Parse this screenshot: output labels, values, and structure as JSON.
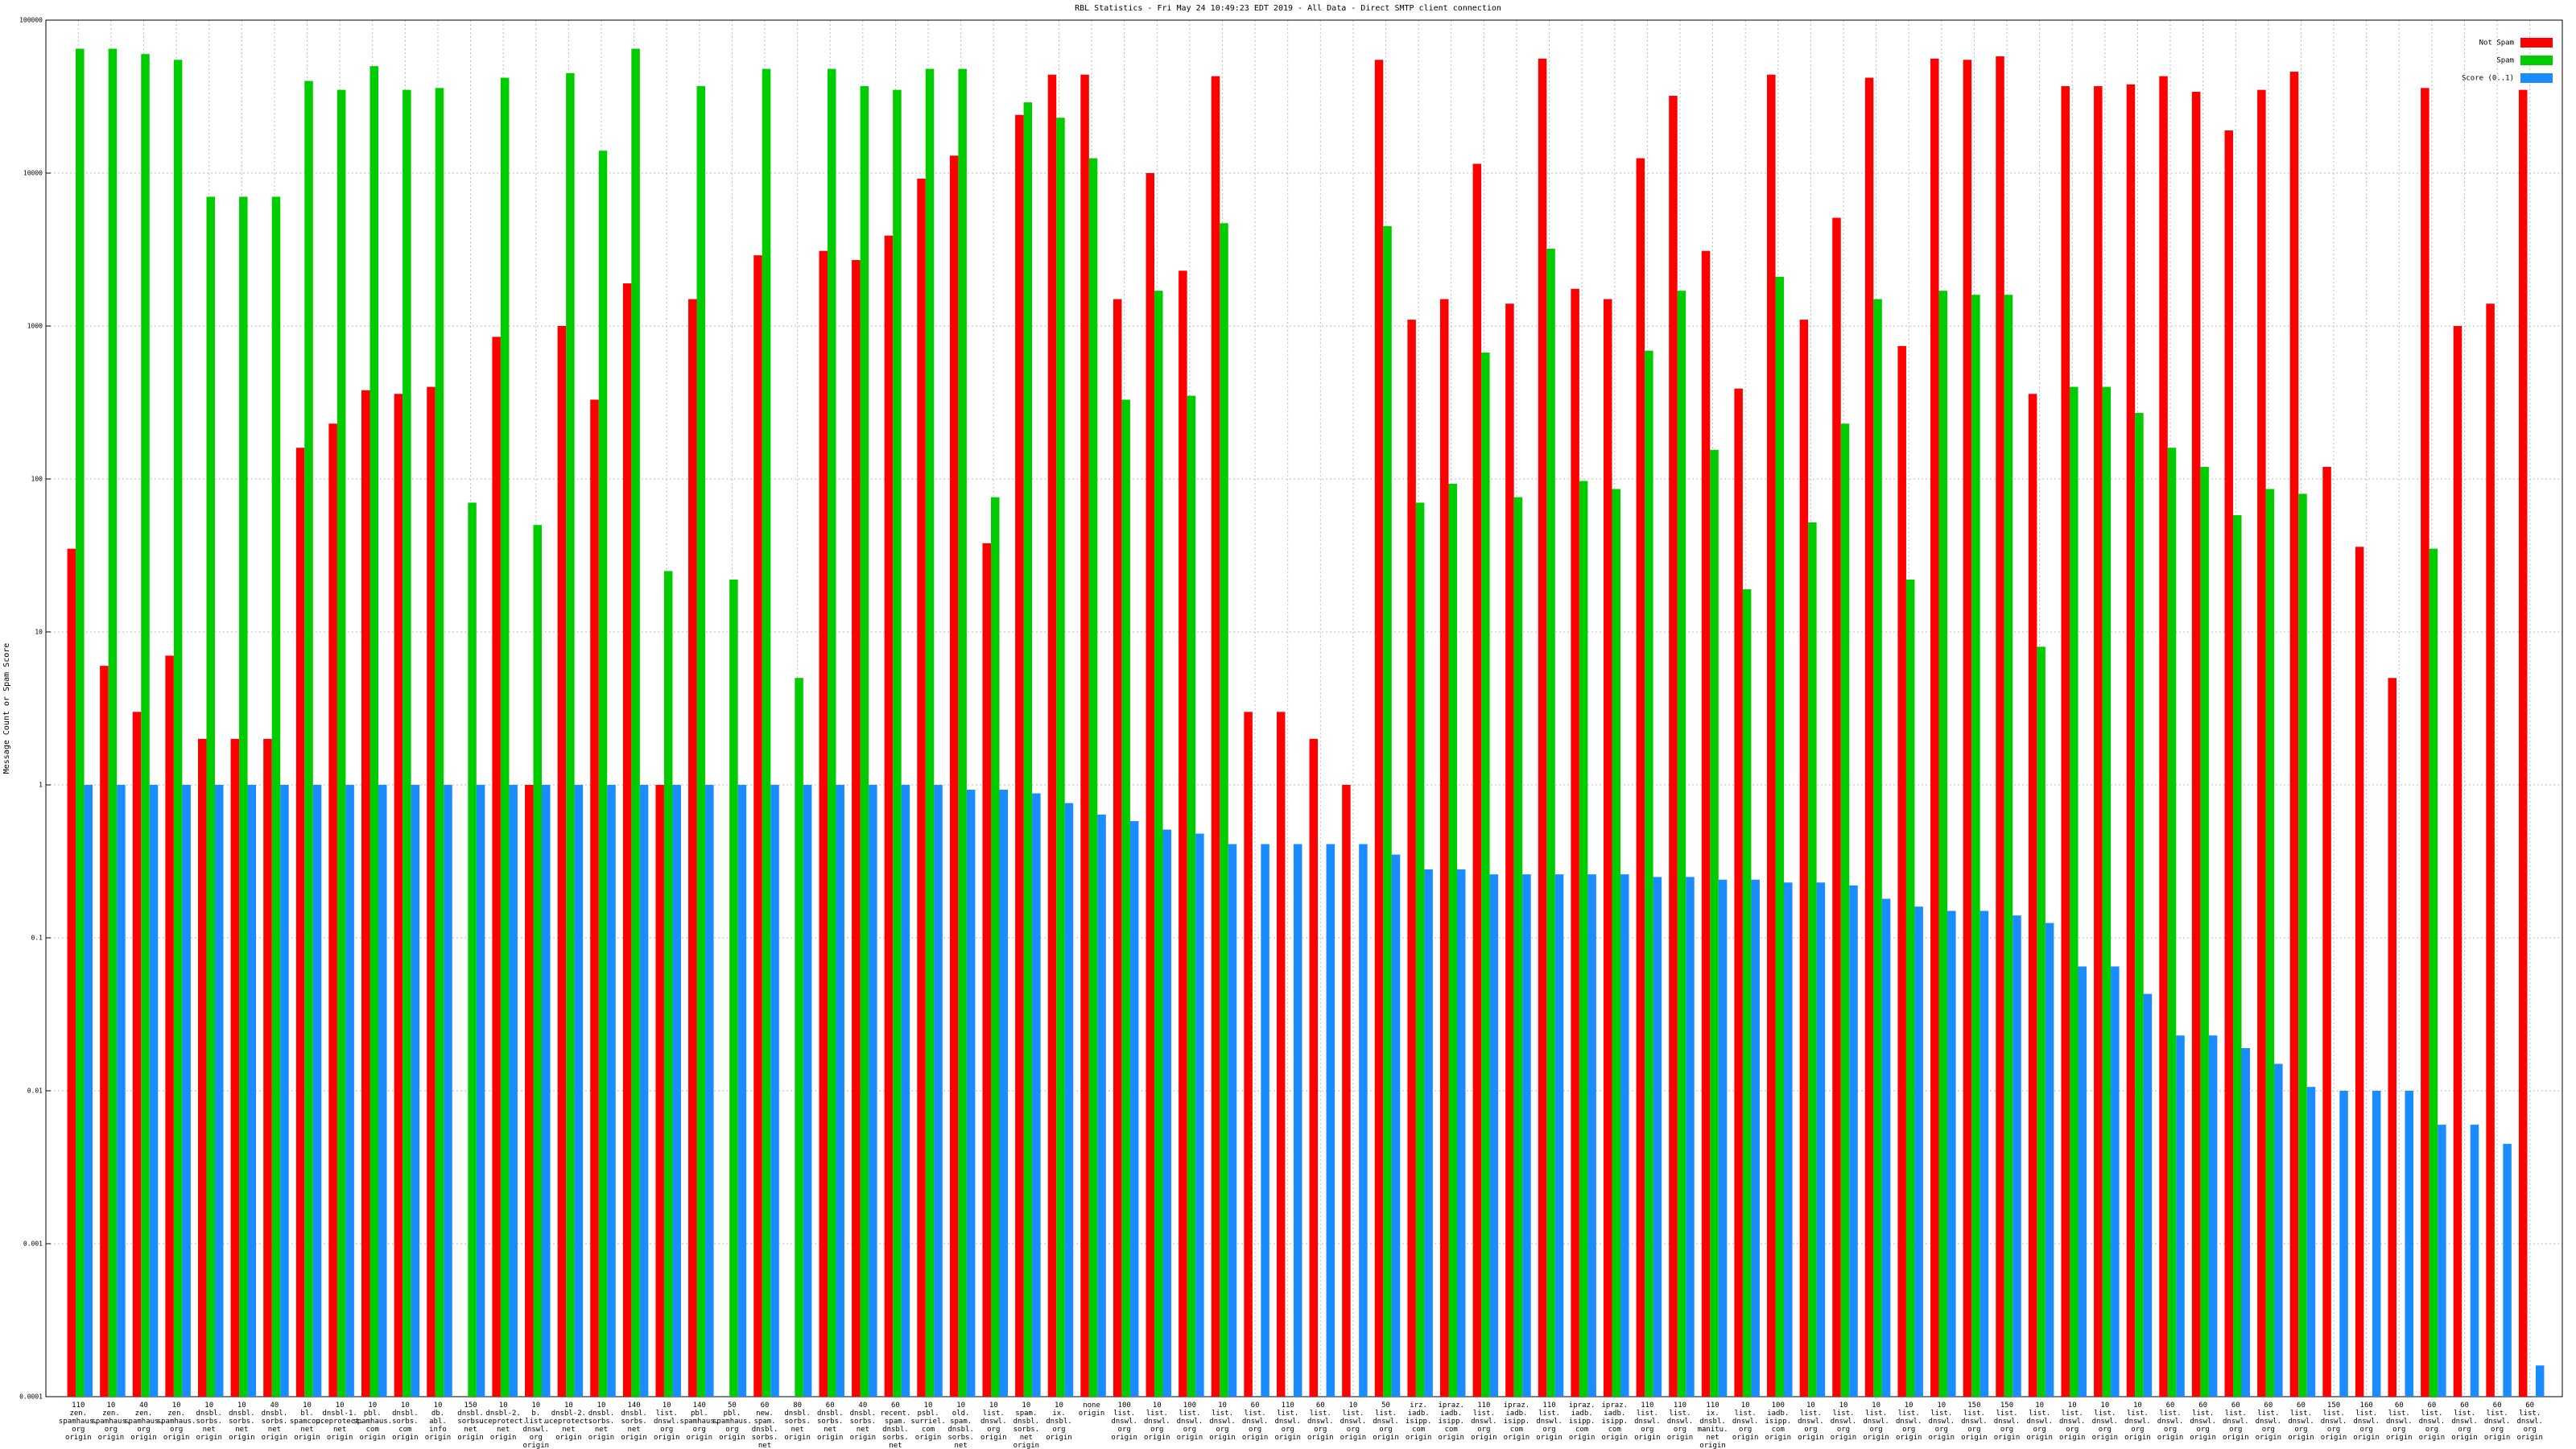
{
  "chart_data": {
    "type": "bar",
    "log_scale": true,
    "grid": true,
    "legend": "upper right",
    "title": "RBL Statistics - Fri May 24 10:49:23 EDT 2019 - All Data - Direct SMTP client connection",
    "y_label": "Message Count or Spam Score",
    "ylim": [
      0.0001,
      100000
    ],
    "yticks": [
      0.0001,
      0.001,
      0.01,
      0.1,
      1,
      10,
      100,
      1000,
      10000,
      100000
    ],
    "categories": [
      "110 zen. spamhaus. org origin",
      "10 zen. spamhaus. org origin",
      "40 zen. spamhaus. org origin",
      "10 zen. spamhaus. org origin",
      "10 dnsbl. sorbs. net origin",
      "10 dnsbl. sorbs. net origin",
      "40 dnsbl. sorbs. net origin",
      "10 bl. spamcop. net origin",
      "10 dnsbl-1. uceprotect. net origin",
      "10 pbl. spamhaus. com origin",
      "10 dnsbl. sorbs. com origin",
      "10 db. abl. info origin",
      "150 dnsbl. sorbs. net origin",
      "10 dnsbl-2. uceprotect. net origin",
      "10 b. list. dnswl. org origin",
      "10 dnsbl-2. uceprotect. net origin",
      "10 dnsbl. sorbs. net origin",
      "140 dnsbl. sorbs. net origin",
      "10 list. dnswl. org origin",
      "140 pbl. spamhaus. org origin",
      "50 pbl. spamhaus. org origin",
      "60 new. spam. dnsbl. sorbs. net origin",
      "80 dnsbl. sorbs. net origin",
      "60 dnsbl. sorbs. net origin",
      "40 dnsbl. sorbs. net origin",
      "60 recent. spam. dnsbl. sorbs. net origin",
      "10 psbl. surriel. com origin",
      "10 old. spam. dnsbl. sorbs. net origin",
      "10 list. dnswl. org origin",
      "10 spam. dnsbl. sorbs. net origin",
      "10 ix. dnsbl. org origin",
      "none origin",
      "100 list. dnswl. org origin",
      "10 list. dnswl. org origin",
      "100 list. dnswl. org origin",
      "10 list. dnswl. org origin",
      "60 list. dnswl. org origin",
      "110 list. dnswl. org origin",
      "60 list. dnswl. org origin",
      "10 list. dnswl. org origin",
      "50 list. dnswl. org origin",
      "irz. iadb. isipp. com origin",
      "ipraz. iadb. isipp. com origin",
      "110 list. dnswl. org origin",
      "ipraz. iadb. isipp. com origin",
      "110 list. dnswl. org origin",
      "ipraz. iadb. isipp. com origin",
      "ipraz. iadb. isipp. com origin",
      "110 list. dnswl. org origin",
      "110 list. dnswl. org origin",
      "110 ix. dnsbl. manitu. net origin",
      "10 list. dnswl. org origin",
      "100 iadb. isipp. com origin",
      "10 list. dnswl. org origin",
      "10 list. dnswl. org origin",
      "10 list. dnswl. org origin",
      "10 list. dnswl. org origin",
      "10 list. dnswl. org origin",
      "150 list. dnswl. org origin",
      "150 list. dnswl. org origin",
      "10 list. dnswl. org origin",
      "10 list. dnswl. org origin",
      "10 list. dnswl. org origin",
      "10 list. dnswl. org origin",
      "60 list. dnswl. org origin",
      "60 list. dnswl. org origin",
      "60 list. dnswl. org origin",
      "60 list. dnswl. org origin",
      "60 list. dnswl. org origin",
      "150 list. dnswl. org origin",
      "160 list. dnswl. org origin",
      "60 list. dnswl. org origin",
      "60 list. dnswl. org origin",
      "60 list. dnswl. org origin",
      "60 list. dnswl. org origin",
      "60 list. dnswl. org origin"
    ],
    "series": [
      {
        "name": "Not Spam",
        "color": "#ff0000",
        "values": [
          35,
          6,
          3,
          7,
          2,
          2,
          2,
          160,
          230,
          380,
          360,
          400,
          null,
          850,
          1,
          1000,
          330,
          1900,
          1,
          1500,
          null,
          2900,
          null,
          3100,
          2700,
          3900,
          9200,
          13000,
          38,
          24000,
          44000,
          44000,
          1500,
          10000,
          2300,
          43000,
          3,
          3,
          2,
          1,
          55000,
          1100,
          1500,
          11500,
          1400,
          56000,
          1750,
          1500,
          12500,
          32000,
          3100,
          390,
          44000,
          1100,
          5100,
          42000,
          740,
          56000,
          55000,
          58000,
          360,
          37000,
          37000,
          38000,
          43000,
          34000,
          19000,
          35000,
          46000,
          120,
          36,
          5,
          36000,
          1000,
          1400,
          35000
        ]
      },
      {
        "name": "Spam",
        "color": "#00cc00",
        "values": [
          65000,
          65000,
          60000,
          55000,
          7000,
          7000,
          7000,
          40000,
          35000,
          50000,
          35000,
          36000,
          70,
          42000,
          50,
          45000,
          14000,
          65000,
          25,
          37000,
          22,
          48000,
          5,
          48000,
          37000,
          35000,
          48000,
          48000,
          76,
          29000,
          23000,
          12500,
          330,
          1700,
          350,
          4700,
          null,
          null,
          null,
          null,
          4500,
          70,
          93,
          670,
          76,
          3200,
          97,
          86,
          690,
          1700,
          155,
          19,
          2100,
          52,
          230,
          1500,
          22,
          1700,
          1600,
          1600,
          8,
          400,
          400,
          270,
          160,
          120,
          58,
          86,
          80,
          null,
          null,
          null,
          35,
          null,
          null,
          null
        ]
      },
      {
        "name": "Score (0..1)",
        "color": "#1a8cff",
        "values": [
          1,
          1,
          1,
          1,
          1,
          1,
          1,
          1,
          1,
          1,
          1,
          1,
          1,
          1,
          1,
          1,
          1,
          1,
          1,
          1,
          1,
          1,
          1,
          1,
          1,
          1,
          1,
          0.93,
          0.93,
          0.88,
          0.76,
          0.64,
          0.58,
          0.51,
          0.48,
          0.41,
          0.41,
          0.41,
          0.41,
          0.41,
          0.35,
          0.28,
          0.28,
          0.26,
          0.26,
          0.26,
          0.26,
          0.26,
          0.25,
          0.25,
          0.24,
          0.24,
          0.23,
          0.23,
          0.22,
          0.18,
          0.16,
          0.15,
          0.15,
          0.14,
          0.125,
          0.065,
          0.065,
          0.043,
          0.023,
          0.023,
          0.019,
          0.015,
          0.0106,
          0.01,
          0.01,
          0.01,
          0.006,
          0.006,
          0.0045,
          0.00016
        ]
      }
    ]
  }
}
